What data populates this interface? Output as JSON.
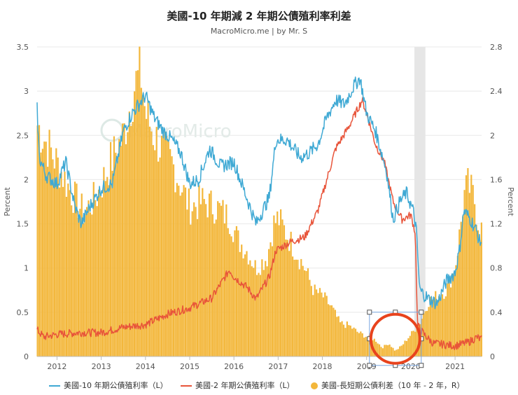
{
  "title": "美國-10 年期減 2 年期公債殖利率利差",
  "subtitle": "MacroMicro.me | by Mr. S",
  "watermark": "MacroMicro",
  "colors": {
    "ten_year": "#3fa9d4",
    "two_year": "#e8543a",
    "spread": "#f3b73b",
    "grid": "#e8e8e8",
    "shade": "#e6e6e6",
    "annotation_circle": "#e8431d",
    "selection": "#7aa6e0"
  },
  "chart_data": {
    "type": "combo-line-bar",
    "title": "美國-10 年期減 2 年期公債殖利率利差",
    "subtitle": "MacroMicro.me | by Mr. S",
    "x_range": [
      2011.55,
      2021.6
    ],
    "x_ticks": [
      "2012",
      "2013",
      "2014",
      "2015",
      "2016",
      "2017",
      "2018",
      "2019",
      "2020",
      "2021"
    ],
    "left_axis": {
      "label": "Percent",
      "range": [
        0,
        3.5
      ],
      "ticks": [
        "0",
        "0.5",
        "1",
        "1.5",
        "2",
        "2.5",
        "3",
        "3.5"
      ]
    },
    "right_axis": {
      "label": "Percent",
      "range": [
        0,
        2.8
      ],
      "ticks": [
        "0",
        "0.4",
        "0.8",
        "1.2",
        "1.6",
        "2",
        "2.4",
        "2.8"
      ]
    },
    "shaded_period": [
      2020.08,
      2020.33
    ],
    "annotation": {
      "type": "circle",
      "center": [
        2019.65,
        0.2
      ],
      "note": "spread near zero / inversion"
    },
    "series": [
      {
        "name": "美國-10 年期公債殖利率（L）",
        "type": "line",
        "axis": "left",
        "x": [
          2011.55,
          2011.6,
          2011.75,
          2012.0,
          2012.2,
          2012.4,
          2012.55,
          2012.75,
          2013.0,
          2013.25,
          2013.5,
          2013.7,
          2013.85,
          2014.0,
          2014.2,
          2014.4,
          2014.6,
          2014.8,
          2015.0,
          2015.2,
          2015.45,
          2015.7,
          2016.0,
          2016.25,
          2016.5,
          2016.8,
          2016.95,
          2017.2,
          2017.5,
          2017.7,
          2017.9,
          2018.1,
          2018.3,
          2018.5,
          2018.7,
          2018.85,
          2019.0,
          2019.2,
          2019.45,
          2019.6,
          2019.75,
          2019.9,
          2020.05,
          2020.12,
          2020.2,
          2020.4,
          2020.6,
          2020.8,
          2021.0,
          2021.1,
          2021.2,
          2021.35,
          2021.5,
          2021.55
        ],
        "y": [
          2.8,
          2.25,
          2.05,
          1.95,
          2.2,
          1.7,
          1.5,
          1.7,
          1.9,
          1.95,
          2.55,
          2.75,
          2.85,
          2.95,
          2.7,
          2.55,
          2.45,
          2.3,
          1.95,
          2.0,
          2.35,
          2.15,
          2.2,
          1.85,
          1.5,
          1.8,
          2.45,
          2.45,
          2.25,
          2.3,
          2.4,
          2.7,
          2.9,
          2.85,
          3.05,
          3.15,
          2.75,
          2.55,
          2.1,
          1.55,
          1.75,
          1.85,
          1.65,
          1.45,
          0.75,
          0.65,
          0.6,
          0.85,
          0.95,
          1.2,
          1.65,
          1.55,
          1.4,
          1.3
        ]
      },
      {
        "name": "美國-2 年期公債殖利率（L）",
        "type": "line",
        "axis": "left",
        "x": [
          2011.55,
          2011.7,
          2012.0,
          2012.5,
          2013.0,
          2013.5,
          2013.8,
          2014.0,
          2014.5,
          2015.0,
          2015.5,
          2015.9,
          2016.0,
          2016.3,
          2016.5,
          2016.8,
          2016.95,
          2017.3,
          2017.6,
          2017.9,
          2018.1,
          2018.3,
          2018.6,
          2018.8,
          2018.9,
          2019.0,
          2019.2,
          2019.4,
          2019.6,
          2019.8,
          2020.0,
          2020.1,
          2020.15,
          2020.3,
          2020.5,
          2021.0,
          2021.3,
          2021.5,
          2021.55
        ],
        "y": [
          0.3,
          0.22,
          0.25,
          0.27,
          0.27,
          0.33,
          0.35,
          0.36,
          0.48,
          0.55,
          0.66,
          0.98,
          0.9,
          0.78,
          0.65,
          0.9,
          1.2,
          1.3,
          1.35,
          1.65,
          2.0,
          2.35,
          2.6,
          2.8,
          2.9,
          2.75,
          2.4,
          2.2,
          1.75,
          1.55,
          1.6,
          1.4,
          0.35,
          0.25,
          0.15,
          0.12,
          0.16,
          0.22,
          0.2
        ]
      },
      {
        "name": "美國-長短期公債利差（10 年 - 2 年，R）",
        "type": "bar",
        "axis": "right",
        "x": [
          2011.55,
          2011.8,
          2012.0,
          2012.3,
          2012.6,
          2012.9,
          2013.2,
          2013.5,
          2013.75,
          2013.9,
          2014.0,
          2014.2,
          2014.4,
          2014.6,
          2014.8,
          2015.0,
          2015.3,
          2015.6,
          2015.9,
          2016.1,
          2016.3,
          2016.5,
          2016.75,
          2016.9,
          2017.0,
          2017.2,
          2017.4,
          2017.6,
          2017.8,
          2018.0,
          2018.2,
          2018.4,
          2018.6,
          2018.8,
          2019.0,
          2019.2,
          2019.35,
          2019.5,
          2019.65,
          2019.8,
          2020.0,
          2020.2,
          2020.4,
          2020.6,
          2020.8,
          2021.0,
          2021.1,
          2021.2,
          2021.3,
          2021.45,
          2021.55
        ],
        "y": [
          2.1,
          1.9,
          1.75,
          1.5,
          1.3,
          1.45,
          1.75,
          2.0,
          2.45,
          2.55,
          2.2,
          2.0,
          1.85,
          1.75,
          1.55,
          1.35,
          1.4,
          1.35,
          1.25,
          1.05,
          0.95,
          0.8,
          0.9,
          1.2,
          1.25,
          1.1,
          0.95,
          0.8,
          0.6,
          0.55,
          0.45,
          0.3,
          0.28,
          0.22,
          0.18,
          0.15,
          0.08,
          0.12,
          0.05,
          0.1,
          0.2,
          0.3,
          0.5,
          0.55,
          0.6,
          0.8,
          1.1,
          1.45,
          1.55,
          1.4,
          1.15
        ]
      }
    ]
  }
}
